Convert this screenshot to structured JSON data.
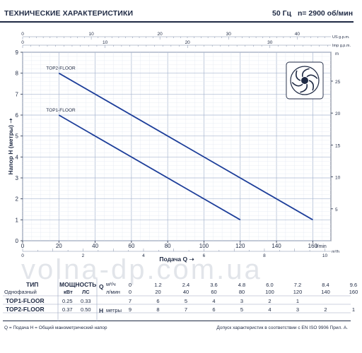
{
  "header": {
    "title": "ТЕХНИЧЕСКИЕ ХАРАКТЕРИСТИКИ",
    "freq": "50 Гц",
    "speed": "n= 2900 об/мин"
  },
  "chart_data": {
    "type": "line",
    "xlabel": "Подача Q",
    "x_unit": "l/min",
    "ylabel": "Напор H (метры)",
    "right_unit": "m",
    "top_units": [
      "US g.p.m.",
      "Imp g.p.m."
    ],
    "bottom_unit2": "m³/h",
    "xlim": [
      0,
      170
    ],
    "ylim": [
      0,
      9
    ],
    "x_ticks": [
      0,
      20,
      40,
      60,
      80,
      100,
      120,
      140,
      160
    ],
    "y_ticks": [
      0,
      1,
      2,
      3,
      4,
      5,
      6,
      7,
      8,
      9
    ],
    "right_ticks": [
      5,
      10,
      15,
      20,
      25
    ],
    "usgpm_ticks": [
      0,
      10,
      20,
      30,
      40
    ],
    "impgpm_ticks": [
      0,
      10,
      20,
      30
    ],
    "m3h_ticks": [
      0,
      2,
      4,
      6,
      8,
      10
    ],
    "grid": true,
    "series": [
      {
        "name": "TOP2-FLOOR",
        "color": "#1e3f9a",
        "x": [
          20,
          160
        ],
        "y": [
          8,
          1
        ]
      },
      {
        "name": "TOP1-FLOOR",
        "color": "#1e3f9a",
        "x": [
          20,
          120
        ],
        "y": [
          6,
          1
        ]
      }
    ]
  },
  "table": {
    "col_type": "ТИП",
    "col_power": "МОЩНОСТЬ",
    "phase": "Однофазный",
    "kw": "кВт",
    "hp": "ЛС",
    "q_letter": "Q",
    "h_letter": "H",
    "unit_m3h": "м³/ч",
    "unit_lmin": "л/мин",
    "unit_m": "метры",
    "q_m3h": [
      "0",
      "1.2",
      "2.4",
      "3.6",
      "4.8",
      "6.0",
      "7.2",
      "8.4",
      "9.6"
    ],
    "q_lmin": [
      "0",
      "20",
      "40",
      "60",
      "80",
      "100",
      "120",
      "140",
      "160"
    ],
    "rows": [
      {
        "model": "TOP1-FLOOR",
        "kw": "0.25",
        "hp": "0.33",
        "h": [
          "7",
          "6",
          "5",
          "4",
          "3",
          "2",
          "1",
          "",
          ""
        ]
      },
      {
        "model": "TOP2-FLOOR",
        "kw": "0.37",
        "hp": "0.50",
        "h": [
          "9",
          "8",
          "7",
          "6",
          "5",
          "4",
          "3",
          "2",
          "1"
        ]
      }
    ]
  },
  "footer": {
    "left": "Q = Подача  H = Общий манометрический напор",
    "right": "Допуск характеристик в соответствии с EN ISO 9906 Прил. A."
  },
  "watermark": "volna-dp.com.ua"
}
